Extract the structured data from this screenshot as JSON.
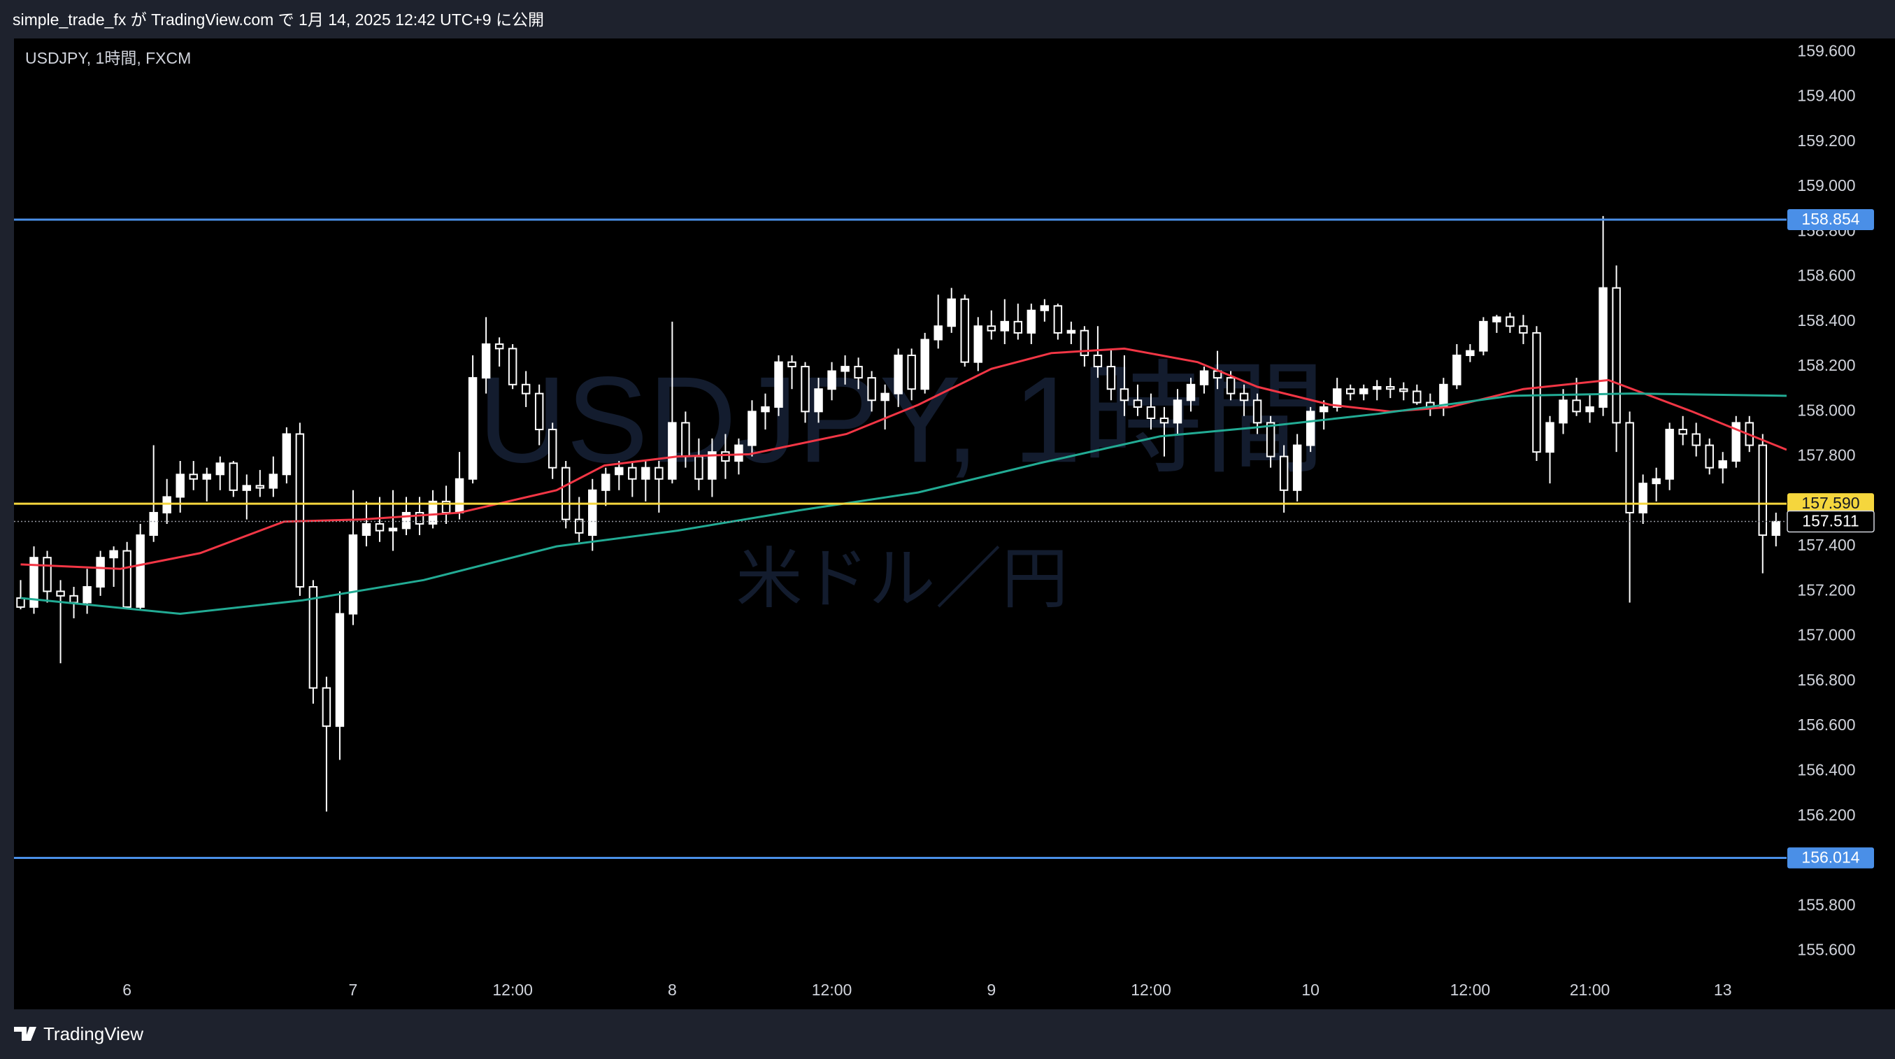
{
  "header": {
    "text": "simple_trade_fx が TradingView.com で 1月 14, 2025 12:42 UTC+9 に公開"
  },
  "footer": {
    "brand": "TradingView"
  },
  "chart_data": {
    "type": "candlestick",
    "title": "USDJPY, 1時間, FXCM",
    "watermark": {
      "title": "USDJPY, 1時間",
      "subtitle": "米ドル／円"
    },
    "up_color": "#ffffff",
    "down_color": "#000000",
    "wick_color": "#ffffff",
    "xlim": [
      -0.5,
      132.8
    ],
    "ylim": [
      155.34,
      159.66
    ],
    "grid": false,
    "xticks": [
      {
        "value": 8,
        "label": "6"
      },
      {
        "value": 25,
        "label": "7"
      },
      {
        "value": 37,
        "label": "12:00"
      },
      {
        "value": 49,
        "label": "8"
      },
      {
        "value": 61,
        "label": "12:00"
      },
      {
        "value": 73,
        "label": "9"
      },
      {
        "value": 85,
        "label": "12:00"
      },
      {
        "value": 97,
        "label": "10"
      },
      {
        "value": 109,
        "label": "12:00"
      },
      {
        "value": 118,
        "label": "21:00"
      },
      {
        "value": 128,
        "label": "13"
      }
    ],
    "yticks": [
      {
        "value": 155.6,
        "label": "155.600"
      },
      {
        "value": 155.8,
        "label": "155.800"
      },
      {
        "value": 156.0,
        "label": "156.000"
      },
      {
        "value": 156.2,
        "label": "156.200"
      },
      {
        "value": 156.4,
        "label": "156.400"
      },
      {
        "value": 156.6,
        "label": "156.600"
      },
      {
        "value": 156.8,
        "label": "156.800"
      },
      {
        "value": 157.0,
        "label": "157.000"
      },
      {
        "value": 157.2,
        "label": "157.200"
      },
      {
        "value": 157.4,
        "label": "157.400"
      },
      {
        "value": 157.6,
        "label": "157.600"
      },
      {
        "value": 157.8,
        "label": "157.800"
      },
      {
        "value": 158.0,
        "label": "158.000"
      },
      {
        "value": 158.2,
        "label": "158.200"
      },
      {
        "value": 158.4,
        "label": "158.400"
      },
      {
        "value": 158.6,
        "label": "158.600"
      },
      {
        "value": 158.8,
        "label": "158.800"
      },
      {
        "value": 159.0,
        "label": "159.000"
      },
      {
        "value": 159.2,
        "label": "159.200"
      },
      {
        "value": 159.4,
        "label": "159.400"
      },
      {
        "value": 159.6,
        "label": "159.600"
      }
    ],
    "hlines": [
      {
        "value": 158.854,
        "color": "#4a8fe7",
        "style": "solid"
      },
      {
        "value": 156.014,
        "color": "#4a8fe7",
        "style": "solid"
      },
      {
        "value": 157.59,
        "label": "157.590",
        "color": "#f5d63d",
        "style": "solid"
      },
      {
        "value": 157.511,
        "color": "#9598a1",
        "style": "dotted"
      }
    ],
    "ohlc": [
      [
        157.17,
        157.25,
        157.12,
        157.13
      ],
      [
        157.13,
        157.4,
        157.1,
        157.35
      ],
      [
        157.35,
        157.38,
        157.15,
        157.2
      ],
      [
        157.2,
        157.25,
        156.88,
        157.18
      ],
      [
        157.18,
        157.22,
        157.08,
        157.15
      ],
      [
        157.15,
        157.3,
        157.1,
        157.22
      ],
      [
        157.22,
        157.38,
        157.18,
        157.35
      ],
      [
        157.35,
        157.4,
        157.22,
        157.38
      ],
      [
        157.38,
        157.42,
        157.12,
        157.13
      ],
      [
        157.13,
        157.5,
        157.12,
        157.45
      ],
      [
        157.45,
        157.85,
        157.42,
        157.55
      ],
      [
        157.55,
        157.7,
        157.5,
        157.62
      ],
      [
        157.62,
        157.78,
        157.55,
        157.72
      ],
      [
        157.72,
        157.78,
        157.65,
        157.7
      ],
      [
        157.7,
        157.75,
        157.6,
        157.72
      ],
      [
        157.72,
        157.8,
        157.65,
        157.77
      ],
      [
        157.77,
        157.78,
        157.62,
        157.65
      ],
      [
        157.65,
        157.72,
        157.52,
        157.67
      ],
      [
        157.67,
        157.74,
        157.62,
        157.66
      ],
      [
        157.66,
        157.8,
        157.62,
        157.72
      ],
      [
        157.72,
        157.93,
        157.68,
        157.9
      ],
      [
        157.9,
        157.95,
        157.18,
        157.22
      ],
      [
        157.22,
        157.25,
        156.7,
        156.77
      ],
      [
        156.77,
        156.82,
        156.22,
        156.6
      ],
      [
        156.6,
        157.2,
        156.45,
        157.1
      ],
      [
        157.1,
        157.65,
        157.05,
        157.45
      ],
      [
        157.45,
        157.6,
        157.4,
        157.5
      ],
      [
        157.5,
        157.62,
        157.42,
        157.47
      ],
      [
        157.47,
        157.65,
        157.38,
        157.48
      ],
      [
        157.48,
        157.62,
        157.45,
        157.55
      ],
      [
        157.55,
        157.62,
        157.45,
        157.5
      ],
      [
        157.5,
        157.65,
        157.48,
        157.6
      ],
      [
        157.6,
        157.67,
        157.5,
        157.55
      ],
      [
        157.55,
        157.82,
        157.52,
        157.7
      ],
      [
        157.7,
        158.25,
        157.68,
        158.15
      ],
      [
        158.15,
        158.42,
        158.08,
        158.3
      ],
      [
        158.3,
        158.33,
        158.2,
        158.28
      ],
      [
        158.28,
        158.3,
        158.1,
        158.12
      ],
      [
        158.12,
        158.18,
        158.02,
        158.08
      ],
      [
        158.08,
        158.12,
        157.85,
        157.92
      ],
      [
        157.92,
        157.95,
        157.7,
        157.75
      ],
      [
        157.75,
        157.78,
        157.48,
        157.52
      ],
      [
        157.52,
        157.62,
        157.42,
        157.46
      ],
      [
        157.45,
        157.7,
        157.38,
        157.65
      ],
      [
        157.65,
        157.75,
        157.58,
        157.72
      ],
      [
        157.72,
        157.78,
        157.65,
        157.75
      ],
      [
        157.75,
        157.78,
        157.62,
        157.7
      ],
      [
        157.7,
        157.78,
        157.6,
        157.75
      ],
      [
        157.75,
        157.78,
        157.55,
        157.7
      ],
      [
        157.7,
        158.4,
        157.68,
        157.95
      ],
      [
        157.95,
        158.0,
        157.75,
        157.8
      ],
      [
        157.8,
        157.88,
        157.65,
        157.7
      ],
      [
        157.7,
        157.88,
        157.62,
        157.82
      ],
      [
        157.82,
        157.9,
        157.7,
        157.78
      ],
      [
        157.78,
        157.88,
        157.72,
        157.85
      ],
      [
        157.85,
        158.05,
        157.8,
        158.0
      ],
      [
        158.0,
        158.08,
        157.92,
        158.02
      ],
      [
        158.02,
        158.25,
        157.98,
        158.22
      ],
      [
        158.22,
        158.25,
        158.1,
        158.2
      ],
      [
        158.2,
        158.22,
        157.95,
        158.0
      ],
      [
        158.0,
        158.15,
        157.95,
        158.1
      ],
      [
        158.1,
        158.22,
        158.05,
        158.18
      ],
      [
        158.18,
        158.25,
        158.12,
        158.2
      ],
      [
        158.2,
        158.24,
        158.1,
        158.15
      ],
      [
        158.15,
        158.18,
        158.0,
        158.05
      ],
      [
        158.05,
        158.12,
        157.92,
        158.08
      ],
      [
        158.08,
        158.28,
        158.02,
        158.25
      ],
      [
        158.25,
        158.28,
        158.05,
        158.1
      ],
      [
        158.1,
        158.35,
        158.08,
        158.32
      ],
      [
        158.32,
        158.52,
        158.28,
        158.38
      ],
      [
        158.38,
        158.55,
        158.35,
        158.5
      ],
      [
        158.5,
        158.52,
        158.2,
        158.22
      ],
      [
        158.22,
        158.42,
        158.18,
        158.38
      ],
      [
        158.38,
        158.45,
        158.32,
        158.36
      ],
      [
        158.36,
        158.5,
        158.3,
        158.4
      ],
      [
        158.4,
        158.48,
        158.32,
        158.35
      ],
      [
        158.35,
        158.48,
        158.3,
        158.45
      ],
      [
        158.45,
        158.5,
        158.4,
        158.47
      ],
      [
        158.47,
        158.48,
        158.32,
        158.35
      ],
      [
        158.35,
        158.4,
        158.3,
        158.36
      ],
      [
        158.36,
        158.38,
        158.2,
        158.25
      ],
      [
        158.25,
        158.38,
        158.15,
        158.2
      ],
      [
        158.2,
        158.28,
        158.05,
        158.1
      ],
      [
        158.1,
        158.25,
        157.98,
        158.05
      ],
      [
        158.05,
        158.12,
        157.98,
        158.02
      ],
      [
        158.02,
        158.08,
        157.92,
        157.97
      ],
      [
        157.97,
        158.02,
        157.8,
        157.95
      ],
      [
        157.95,
        158.1,
        157.9,
        158.05
      ],
      [
        158.05,
        158.15,
        158.0,
        158.12
      ],
      [
        158.12,
        158.2,
        158.08,
        158.18
      ],
      [
        158.18,
        158.27,
        158.1,
        158.15
      ],
      [
        158.15,
        158.18,
        158.05,
        158.08
      ],
      [
        158.08,
        158.12,
        157.98,
        158.05
      ],
      [
        158.05,
        158.08,
        157.9,
        157.95
      ],
      [
        157.95,
        157.98,
        157.75,
        157.8
      ],
      [
        157.8,
        157.85,
        157.55,
        157.65
      ],
      [
        157.65,
        157.9,
        157.6,
        157.85
      ],
      [
        157.85,
        158.02,
        157.82,
        158.0
      ],
      [
        158.0,
        158.05,
        157.92,
        158.02
      ],
      [
        158.02,
        158.15,
        158.0,
        158.1
      ],
      [
        158.1,
        158.12,
        158.05,
        158.08
      ],
      [
        158.08,
        158.12,
        158.05,
        158.1
      ],
      [
        158.1,
        158.14,
        158.05,
        158.11
      ],
      [
        158.11,
        158.15,
        158.06,
        158.1
      ],
      [
        158.1,
        158.13,
        158.05,
        158.09
      ],
      [
        158.09,
        158.12,
        158.03,
        158.04
      ],
      [
        158.04,
        158.08,
        157.98,
        158.02
      ],
      [
        158.02,
        158.15,
        157.98,
        158.12
      ],
      [
        158.12,
        158.3,
        158.1,
        158.25
      ],
      [
        158.25,
        158.3,
        158.22,
        158.27
      ],
      [
        158.27,
        158.42,
        158.25,
        158.4
      ],
      [
        158.4,
        158.43,
        158.35,
        158.42
      ],
      [
        158.42,
        158.44,
        158.35,
        158.38
      ],
      [
        158.38,
        158.43,
        158.3,
        158.35
      ],
      [
        158.35,
        158.38,
        157.78,
        157.82
      ],
      [
        157.82,
        157.98,
        157.68,
        157.95
      ],
      [
        157.95,
        158.1,
        157.9,
        158.05
      ],
      [
        158.05,
        158.15,
        157.98,
        158.0
      ],
      [
        158.0,
        158.08,
        157.95,
        158.02
      ],
      [
        158.02,
        158.87,
        157.98,
        158.55
      ],
      [
        158.55,
        158.65,
        157.82,
        157.95
      ],
      [
        157.95,
        158.0,
        157.15,
        157.55
      ],
      [
        157.55,
        157.72,
        157.5,
        157.68
      ],
      [
        157.68,
        157.75,
        157.6,
        157.7
      ],
      [
        157.7,
        157.95,
        157.65,
        157.92
      ],
      [
        157.92,
        157.98,
        157.85,
        157.9
      ],
      [
        157.9,
        157.95,
        157.8,
        157.85
      ],
      [
        157.85,
        157.88,
        157.72,
        157.75
      ],
      [
        157.75,
        157.82,
        157.68,
        157.78
      ],
      [
        157.78,
        157.98,
        157.75,
        157.95
      ],
      [
        157.95,
        157.98,
        157.82,
        157.85
      ],
      [
        157.85,
        157.9,
        157.28,
        157.45
      ],
      [
        157.45,
        157.55,
        157.4,
        157.51
      ]
    ],
    "series": [
      {
        "color": "#f23645",
        "x": [
          0,
          7.5,
          13.5,
          19.8,
          25.7,
          33,
          40.3,
          43.9,
          49.4,
          54.8,
          62.1,
          67.5,
          73,
          77.5,
          83,
          88.5,
          93,
          98.5,
          103,
          107.5,
          113,
          119.4,
          125.7,
          132.8
        ],
        "values": [
          157.32,
          157.3,
          157.37,
          157.51,
          157.52,
          157.55,
          157.65,
          157.76,
          157.8,
          157.81,
          157.9,
          158.03,
          158.19,
          158.26,
          158.28,
          158.22,
          158.11,
          158.03,
          158.0,
          158.02,
          158.1,
          158.14,
          158.0,
          157.83
        ]
      },
      {
        "color": "#22ab94",
        "x": [
          0,
          12,
          21.2,
          30.3,
          40.3,
          49.4,
          58.5,
          67.5,
          76.6,
          85.7,
          93,
          102.1,
          112.1,
          121.2,
          132.8
        ],
        "values": [
          157.17,
          157.1,
          157.16,
          157.25,
          157.4,
          157.47,
          157.56,
          157.64,
          157.77,
          157.89,
          157.93,
          157.99,
          158.07,
          158.08,
          158.07
        ]
      }
    ]
  }
}
